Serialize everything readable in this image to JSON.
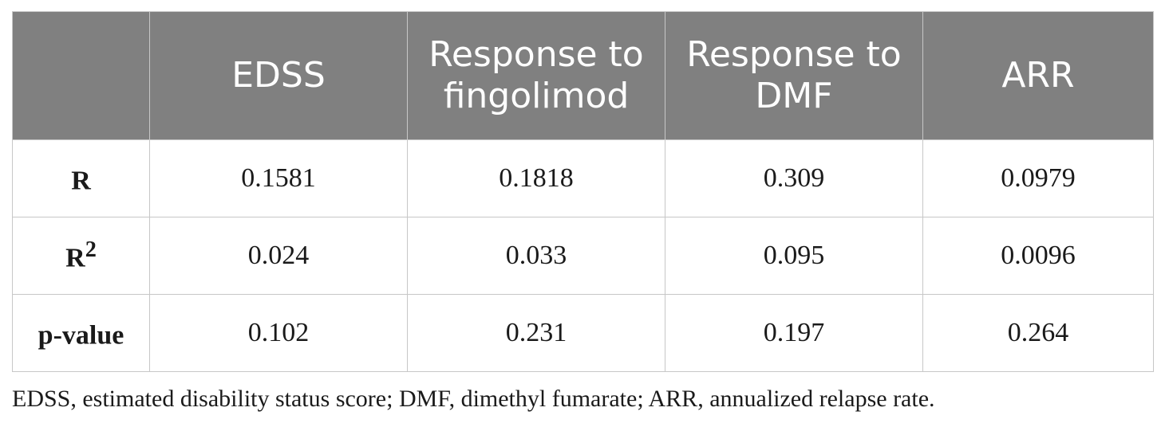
{
  "table": {
    "columns": [
      "",
      "EDSS",
      "Response to fingolimod",
      "Response to DMF",
      "ARR"
    ],
    "rows": [
      {
        "label": "R",
        "sup": "",
        "values": [
          "0.1581",
          "0.1818",
          "0.309",
          "0.0979"
        ]
      },
      {
        "label": "R",
        "sup": "2",
        "values": [
          "0.024",
          "0.033",
          "0.095",
          "0.0096"
        ]
      },
      {
        "label": "p-value",
        "sup": "",
        "values": [
          "0.102",
          "0.231",
          "0.197",
          "0.264"
        ]
      }
    ]
  },
  "footnote": "EDSS, estimated disability status score; DMF, dimethyl fumarate; ARR, annualized relapse rate.",
  "colors": {
    "header_bg": "#808080",
    "header_text": "#ffffff",
    "grid": "#c7c7c7"
  }
}
